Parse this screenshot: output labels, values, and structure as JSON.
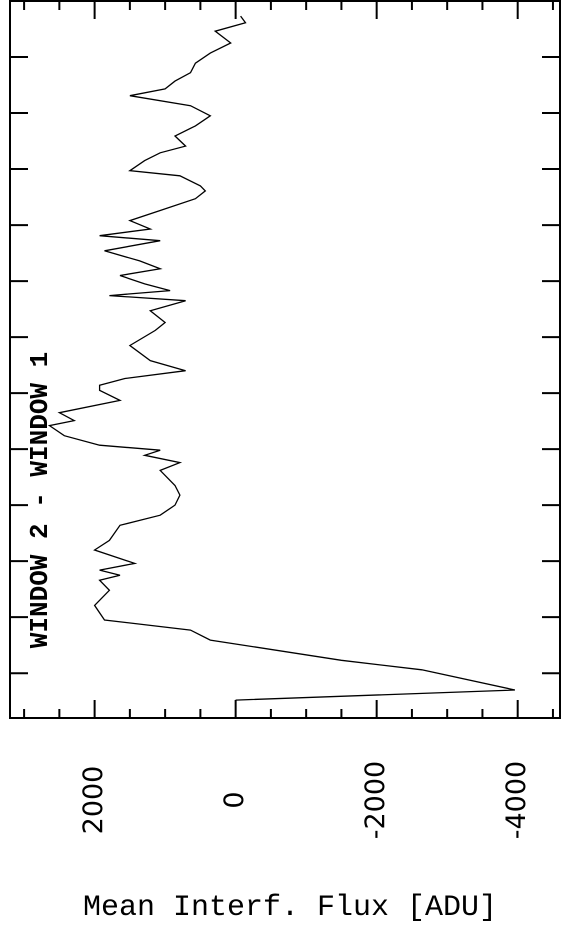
{
  "chart_data": {
    "type": "line",
    "y_label": "Mean Interf. Flux [ADU]",
    "annotation": "WINDOW 2 - WINDOW 1",
    "x": [
      -4.8,
      -3.0,
      0.6,
      2.3,
      5.9,
      7.7,
      9.5,
      12.1,
      14.8,
      16.6,
      17.5,
      18.4,
      19.6,
      22.0,
      23.7,
      26.4,
      28.2,
      30.0,
      31.8,
      33.5,
      36.2,
      37.6,
      38.9,
      39.8,
      40.7,
      42.4,
      44.2,
      45.1,
      46.5,
      48.7,
      50.5,
      51.4,
      52.6,
      54.0,
      55.8,
      58.5,
      61.2,
      62.6,
      64.7,
      66.5,
      67.4,
      68.3,
      69.5,
      71.0,
      72.2,
      73.6,
      75.4,
      77.2,
      78.1,
      79.3,
      80.8,
      82.6,
      84.7,
      86.1,
      87.0,
      88.8,
      89.7,
      91.5,
      92.9,
      94.1,
      95.9,
      97.7,
      99.5,
      101.3,
      103.1,
      104.3,
      105.7,
      107.2,
      108.9,
      110.7,
      112.5,
      114.6,
      116.1,
      117.3
    ],
    "values": [
      0,
      -3960,
      -2640,
      -1500,
      360,
      640,
      1860,
      2000,
      1790,
      1930,
      1640,
      1930,
      1430,
      2000,
      1790,
      1640,
      1070,
      860,
      790,
      860,
      1070,
      790,
      1290,
      1070,
      1930,
      2430,
      2640,
      2290,
      2500,
      1640,
      1930,
      1930,
      1570,
      710,
      1210,
      1500,
      1140,
      1000,
      1210,
      710,
      1790,
      930,
      1290,
      1640,
      1070,
      1360,
      1860,
      1070,
      1930,
      1210,
      1500,
      1070,
      570,
      430,
      500,
      790,
      1500,
      1290,
      1070,
      710,
      860,
      570,
      360,
      640,
      1500,
      1000,
      860,
      640,
      570,
      360,
      70,
      290,
      -140,
      -70
    ],
    "color": "#000000",
    "xlim": [
      -8,
      120
    ],
    "xticks": [
      0,
      10,
      20,
      30,
      40,
      50,
      60,
      70,
      80,
      90,
      100,
      110
    ],
    "ylim": [
      -4600,
      3200
    ],
    "yticks": [
      -4000,
      -2000,
      0,
      2000
    ],
    "yminor_ticks": [
      -4500,
      -3500,
      -3000,
      -2500,
      -1500,
      -1000,
      -500,
      500,
      1000,
      1500,
      2500,
      3000
    ]
  }
}
